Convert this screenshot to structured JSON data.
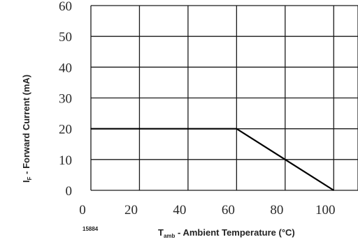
{
  "chart_data": {
    "type": "line",
    "figure_id": "15884",
    "xlabel": {
      "prefix": "T",
      "subscript": "amb",
      "suffix": " - Ambient Temperature (°C)"
    },
    "ylabel": {
      "prefix": "I",
      "subscript": "F",
      "suffix": " - Forward Current (mA)"
    },
    "xlim": [
      0,
      100
    ],
    "ylim": [
      0,
      60
    ],
    "x_ticks": [
      0,
      20,
      40,
      60,
      80,
      100
    ],
    "y_ticks": [
      0,
      10,
      20,
      30,
      40,
      50,
      60
    ],
    "y_tick_labels": [
      "0",
      "10",
      "20",
      "30",
      "40",
      "50",
      "60"
    ],
    "x_tick_labels": [
      "0",
      "20",
      "40",
      "60",
      "80",
      "100"
    ],
    "grid": true,
    "series": [
      {
        "x": [
          0,
          60,
          100
        ],
        "y": [
          20,
          20,
          0
        ],
        "color": "#000000"
      }
    ]
  }
}
